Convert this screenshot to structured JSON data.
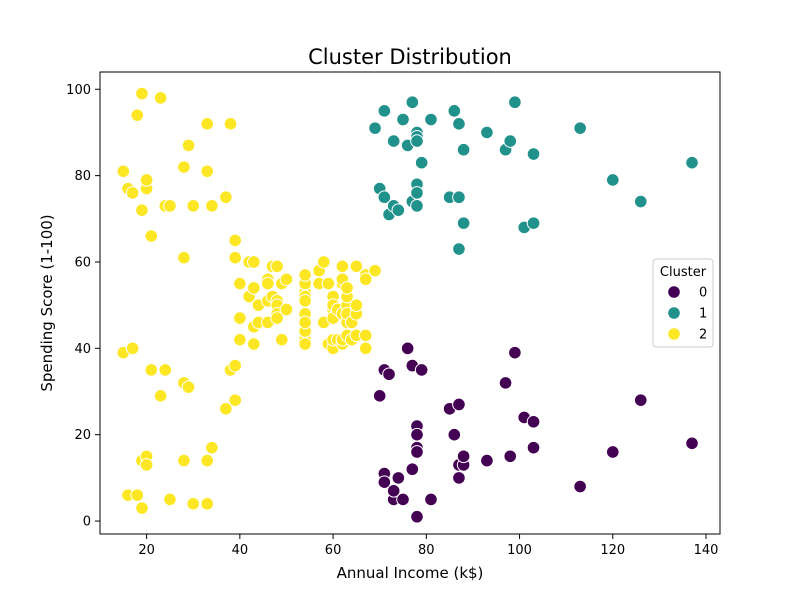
{
  "chart_data": {
    "type": "scatter",
    "title": "Cluster Distribution",
    "xlabel": "Annual Income (k$)",
    "ylabel": "Spending Score (1-100)",
    "xlim": [
      10,
      143
    ],
    "ylim": [
      -3,
      104
    ],
    "xticks": [
      20,
      40,
      60,
      80,
      100,
      120,
      140
    ],
    "yticks": [
      0,
      20,
      40,
      60,
      80,
      100
    ],
    "grid": false,
    "legend": {
      "title": "Cluster",
      "placement": "center-right"
    },
    "series": [
      {
        "name": "0",
        "color": "#440154",
        "points": [
          [
            70,
            29
          ],
          [
            71,
            35
          ],
          [
            72,
            34
          ],
          [
            71,
            11
          ],
          [
            71,
            9
          ],
          [
            73,
            5
          ],
          [
            73,
            7
          ],
          [
            74,
            10
          ],
          [
            75,
            5
          ],
          [
            76,
            40
          ],
          [
            77,
            36
          ],
          [
            77,
            12
          ],
          [
            78,
            22
          ],
          [
            78,
            20
          ],
          [
            78,
            17
          ],
          [
            78,
            16
          ],
          [
            78,
            1
          ],
          [
            79,
            35
          ],
          [
            81,
            5
          ],
          [
            85,
            26
          ],
          [
            86,
            20
          ],
          [
            87,
            27
          ],
          [
            87,
            13
          ],
          [
            87,
            10
          ],
          [
            88,
            13
          ],
          [
            88,
            15
          ],
          [
            93,
            14
          ],
          [
            97,
            32
          ],
          [
            98,
            15
          ],
          [
            99,
            39
          ],
          [
            101,
            24
          ],
          [
            103,
            23
          ],
          [
            103,
            17
          ],
          [
            113,
            8
          ],
          [
            120,
            16
          ],
          [
            126,
            28
          ],
          [
            137,
            18
          ]
        ]
      },
      {
        "name": "1",
        "color": "#21918c",
        "points": [
          [
            69,
            91
          ],
          [
            70,
            77
          ],
          [
            71,
            95
          ],
          [
            71,
            75
          ],
          [
            72,
            71
          ],
          [
            73,
            88
          ],
          [
            73,
            73
          ],
          [
            74,
            72
          ],
          [
            75,
            93
          ],
          [
            76,
            87
          ],
          [
            77,
            97
          ],
          [
            77,
            74
          ],
          [
            78,
            90
          ],
          [
            78,
            89
          ],
          [
            78,
            88
          ],
          [
            78,
            78
          ],
          [
            78,
            76
          ],
          [
            78,
            73
          ],
          [
            79,
            83
          ],
          [
            81,
            93
          ],
          [
            85,
            75
          ],
          [
            86,
            95
          ],
          [
            87,
            92
          ],
          [
            87,
            75
          ],
          [
            87,
            63
          ],
          [
            88,
            86
          ],
          [
            88,
            69
          ],
          [
            93,
            90
          ],
          [
            97,
            86
          ],
          [
            98,
            88
          ],
          [
            99,
            97
          ],
          [
            101,
            68
          ],
          [
            103,
            85
          ],
          [
            103,
            69
          ],
          [
            113,
            91
          ],
          [
            120,
            79
          ],
          [
            126,
            74
          ],
          [
            137,
            83
          ]
        ]
      },
      {
        "name": "2",
        "color": "#fde725",
        "points": [
          [
            15,
            39
          ],
          [
            15,
            81
          ],
          [
            16,
            6
          ],
          [
            16,
            77
          ],
          [
            17,
            40
          ],
          [
            17,
            76
          ],
          [
            18,
            6
          ],
          [
            18,
            94
          ],
          [
            19,
            3
          ],
          [
            19,
            72
          ],
          [
            19,
            14
          ],
          [
            19,
            99
          ],
          [
            20,
            15
          ],
          [
            20,
            77
          ],
          [
            20,
            13
          ],
          [
            20,
            79
          ],
          [
            21,
            35
          ],
          [
            21,
            66
          ],
          [
            23,
            29
          ],
          [
            23,
            98
          ],
          [
            24,
            35
          ],
          [
            24,
            73
          ],
          [
            25,
            5
          ],
          [
            25,
            73
          ],
          [
            28,
            14
          ],
          [
            28,
            82
          ],
          [
            28,
            32
          ],
          [
            28,
            61
          ],
          [
            29,
            31
          ],
          [
            29,
            87
          ],
          [
            30,
            4
          ],
          [
            30,
            73
          ],
          [
            33,
            4
          ],
          [
            33,
            92
          ],
          [
            33,
            14
          ],
          [
            33,
            81
          ],
          [
            34,
            17
          ],
          [
            34,
            73
          ],
          [
            37,
            26
          ],
          [
            37,
            75
          ],
          [
            38,
            35
          ],
          [
            38,
            92
          ],
          [
            39,
            36
          ],
          [
            39,
            61
          ],
          [
            39,
            28
          ],
          [
            39,
            65
          ],
          [
            40,
            55
          ],
          [
            40,
            47
          ],
          [
            40,
            42
          ],
          [
            40,
            42
          ],
          [
            42,
            52
          ],
          [
            42,
            60
          ],
          [
            43,
            54
          ],
          [
            43,
            60
          ],
          [
            43,
            45
          ],
          [
            43,
            41
          ],
          [
            44,
            50
          ],
          [
            44,
            46
          ],
          [
            46,
            51
          ],
          [
            46,
            46
          ],
          [
            46,
            56
          ],
          [
            46,
            55
          ],
          [
            47,
            52
          ],
          [
            47,
            59
          ],
          [
            48,
            51
          ],
          [
            48,
            59
          ],
          [
            48,
            50
          ],
          [
            48,
            48
          ],
          [
            48,
            59
          ],
          [
            48,
            47
          ],
          [
            49,
            55
          ],
          [
            49,
            42
          ],
          [
            50,
            49
          ],
          [
            50,
            56
          ],
          [
            54,
            47
          ],
          [
            54,
            54
          ],
          [
            54,
            53
          ],
          [
            54,
            48
          ],
          [
            54,
            52
          ],
          [
            54,
            42
          ],
          [
            54,
            51
          ],
          [
            54,
            55
          ],
          [
            54,
            41
          ],
          [
            54,
            44
          ],
          [
            54,
            57
          ],
          [
            54,
            46
          ],
          [
            57,
            58
          ],
          [
            57,
            55
          ],
          [
            58,
            60
          ],
          [
            58,
            46
          ],
          [
            59,
            55
          ],
          [
            59,
            41
          ],
          [
            60,
            49
          ],
          [
            60,
            40
          ],
          [
            60,
            42
          ],
          [
            60,
            52
          ],
          [
            60,
            47
          ],
          [
            60,
            50
          ],
          [
            61,
            42
          ],
          [
            61,
            49
          ],
          [
            62,
            41
          ],
          [
            62,
            48
          ],
          [
            62,
            59
          ],
          [
            62,
            55
          ],
          [
            62,
            56
          ],
          [
            62,
            42
          ],
          [
            63,
            50
          ],
          [
            63,
            46
          ],
          [
            63,
            43
          ],
          [
            63,
            48
          ],
          [
            63,
            52
          ],
          [
            63,
            54
          ],
          [
            64,
            42
          ],
          [
            64,
            46
          ],
          [
            65,
            48
          ],
          [
            65,
            50
          ],
          [
            65,
            43
          ],
          [
            65,
            59
          ],
          [
            67,
            43
          ],
          [
            67,
            57
          ],
          [
            67,
            56
          ],
          [
            67,
            40
          ],
          [
            69,
            58
          ]
        ]
      }
    ]
  }
}
